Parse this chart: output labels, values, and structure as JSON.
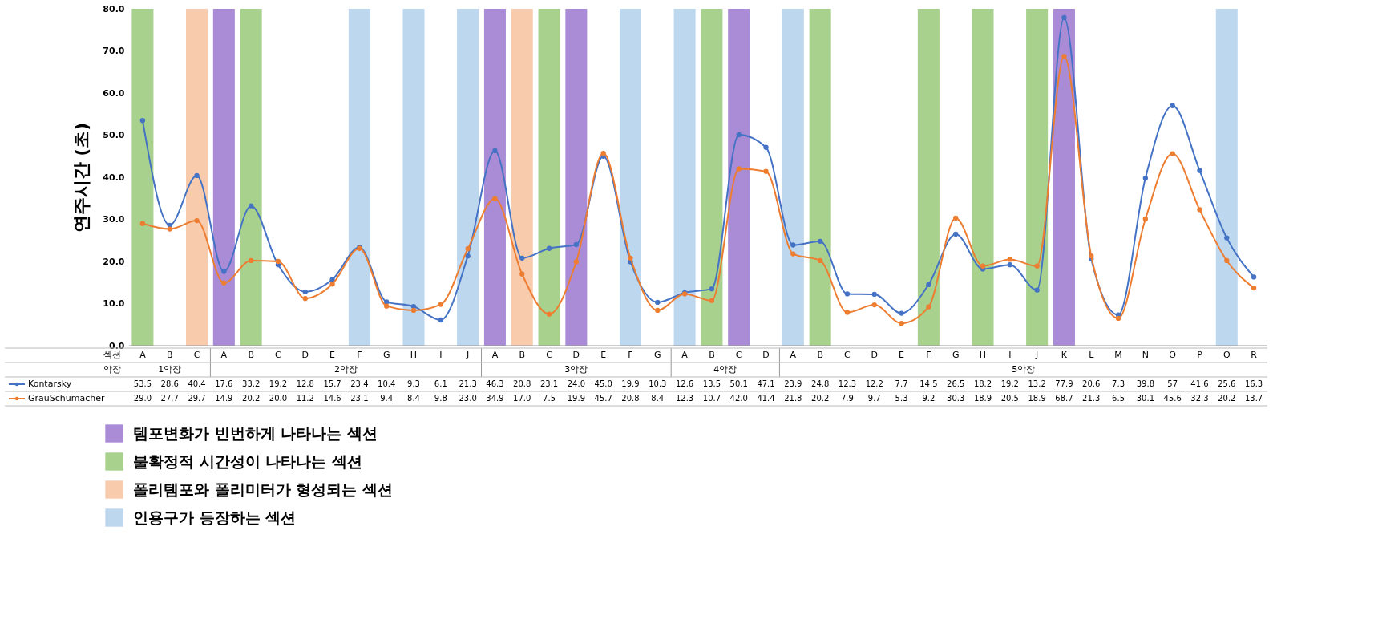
{
  "chart_data": {
    "type": "line",
    "ylabel": "연주시간 (초)",
    "xlabel": "섹션",
    "categories": [
      "A",
      "B",
      "C",
      "A",
      "B",
      "C",
      "D",
      "E",
      "F",
      "G",
      "H",
      "I",
      "J",
      "A",
      "B",
      "C",
      "D",
      "E",
      "F",
      "G",
      "A",
      "B",
      "C",
      "D",
      "A",
      "B",
      "C",
      "D",
      "E",
      "F",
      "G",
      "H",
      "I",
      "J",
      "K",
      "L",
      "M",
      "N",
      "O",
      "P",
      "Q",
      "R"
    ],
    "series": [
      {
        "name": "템포변화가 빈번하게 나타나는 섹션",
        "type": "bar",
        "color": "#a98bd6",
        "value_labels": [
          null,
          null,
          null,
          null,
          null,
          null,
          null,
          null,
          null,
          null,
          null,
          null,
          null,
          null,
          null,
          null,
          null,
          null,
          null,
          null,
          null,
          null,
          null,
          null,
          null,
          null,
          null,
          null,
          null,
          null,
          null,
          null,
          null,
          null,
          null,
          null,
          null,
          null,
          null,
          null,
          null,
          null
        ],
        "values": [
          null,
          null,
          null,
          80,
          null,
          null,
          null,
          null,
          null,
          null,
          null,
          null,
          null,
          80,
          null,
          null,
          80,
          null,
          null,
          null,
          null,
          null,
          80,
          null,
          null,
          null,
          null,
          null,
          null,
          null,
          null,
          null,
          null,
          null,
          80,
          null,
          null,
          null,
          null,
          null,
          null,
          null
        ]
      },
      {
        "name": "불확정적 시간성이 나타나는 섹션",
        "type": "bar",
        "color": "#a9d18e",
        "value_labels": [
          null,
          null,
          null,
          null,
          null,
          null,
          null,
          null,
          null,
          null,
          null,
          null,
          null,
          null,
          null,
          null,
          null,
          null,
          null,
          null,
          null,
          null,
          null,
          null,
          null,
          null,
          null,
          null,
          null,
          null,
          null,
          null,
          null,
          null,
          null,
          null,
          null,
          null,
          null,
          null,
          null,
          null
        ],
        "values": [
          80,
          null,
          null,
          null,
          80,
          null,
          null,
          null,
          null,
          null,
          null,
          null,
          null,
          null,
          null,
          80,
          null,
          null,
          null,
          null,
          null,
          80,
          null,
          null,
          null,
          80,
          null,
          null,
          null,
          80,
          null,
          80,
          null,
          80,
          null,
          null,
          null,
          null,
          null,
          null,
          null,
          null
        ]
      },
      {
        "name": "폴리템포와 폴리미터가 형성되는 섹션",
        "type": "bar",
        "color": "#f8cbad",
        "value_labels": [
          null,
          null,
          null,
          null,
          null,
          null,
          null,
          null,
          null,
          null,
          null,
          null,
          null,
          null,
          null,
          null,
          null,
          null,
          null,
          null,
          null,
          null,
          null,
          null,
          null,
          null,
          null,
          null,
          null,
          null,
          null,
          null,
          null,
          null,
          null,
          null,
          null,
          null,
          null,
          null,
          null,
          null
        ],
        "values": [
          null,
          null,
          80,
          null,
          null,
          null,
          null,
          null,
          null,
          null,
          null,
          null,
          null,
          null,
          80,
          null,
          null,
          null,
          null,
          null,
          null,
          null,
          null,
          null,
          null,
          null,
          null,
          null,
          null,
          null,
          null,
          null,
          null,
          null,
          null,
          null,
          null,
          null,
          null,
          null,
          null,
          null
        ]
      },
      {
        "name": "인용구가 등장하는 섹션",
        "type": "bar",
        "color": "#bdd7ee",
        "value_labels": [
          null,
          null,
          null,
          null,
          null,
          null,
          null,
          null,
          null,
          null,
          null,
          null,
          null,
          null,
          null,
          null,
          null,
          null,
          null,
          null,
          null,
          null,
          null,
          null,
          null,
          null,
          null,
          null,
          null,
          null,
          null,
          null,
          null,
          null,
          null,
          null,
          null,
          null,
          null,
          null,
          null,
          null
        ],
        "values": [
          null,
          null,
          null,
          null,
          null,
          null,
          null,
          null,
          80,
          null,
          80,
          null,
          80,
          null,
          null,
          null,
          null,
          null,
          80,
          null,
          80,
          null,
          null,
          null,
          80,
          null,
          null,
          null,
          null,
          null,
          null,
          null,
          null,
          null,
          null,
          null,
          null,
          null,
          null,
          null,
          80,
          null
        ]
      },
      {
        "name": "Kontarsky",
        "color": "#4472c4",
        "values": [
          53.5,
          28.6,
          40.4,
          17.6,
          33.2,
          19.2,
          12.8,
          15.7,
          23.4,
          10.4,
          9.3,
          6.1,
          21.3,
          46.3,
          20.8,
          23.1,
          24.0,
          45.0,
          19.9,
          10.3,
          12.6,
          13.5,
          50.1,
          47.1,
          23.9,
          24.8,
          12.3,
          12.2,
          7.7,
          14.5,
          26.5,
          18.2,
          19.2,
          13.2,
          77.9,
          20.6,
          7.3,
          39.8,
          57,
          41.6,
          25.6,
          16.3
        ],
        "value_labels": [
          "53.5",
          "28.6",
          "40.4",
          "17.6",
          "33.2",
          "19.2",
          "12.8",
          "15.7",
          "23.4",
          "10.4",
          "9.3",
          "6.1",
          "21.3",
          "46.3",
          "20.8",
          "23.1",
          "24.0",
          "45.0",
          "19.9",
          "10.3",
          "12.6",
          "13.5",
          "50.1",
          "47.1",
          "23.9",
          "24.8",
          "12.3",
          "12.2",
          "7.7",
          "14.5",
          "26.5",
          "18.2",
          "19.2",
          "13.2",
          "77.9",
          "20.6",
          "7.3",
          "39.8",
          "57",
          "41.6",
          "25.6",
          "16.3"
        ]
      },
      {
        "name": "GrauSchumacher",
        "color": "#ed7d31",
        "values": [
          29.0,
          27.7,
          29.7,
          14.9,
          20.2,
          20.0,
          11.2,
          14.6,
          23.1,
          9.4,
          8.4,
          9.8,
          23.0,
          34.9,
          17.0,
          7.5,
          19.9,
          45.7,
          20.8,
          8.4,
          12.3,
          10.7,
          42.0,
          41.4,
          21.8,
          20.2,
          7.9,
          9.7,
          5.3,
          9.2,
          30.3,
          18.9,
          20.5,
          18.9,
          68.7,
          21.3,
          6.5,
          30.1,
          45.6,
          32.3,
          20.2,
          13.7
        ],
        "value_labels": [
          "29.0",
          "27.7",
          "29.7",
          "14.9",
          "20.2",
          "20.0",
          "11.2",
          "14.6",
          "23.1",
          "9.4",
          "8.4",
          "9.8",
          "23.0",
          "34.9",
          "17.0",
          "7.5",
          "19.9",
          "45.7",
          "20.8",
          "8.4",
          "12.3",
          "10.7",
          "42.0",
          "41.4",
          "21.8",
          "20.2",
          "7.9",
          "9.7",
          "5.3",
          "9.2",
          "30.3",
          "18.9",
          "20.5",
          "18.9",
          "68.7",
          "21.3",
          "6.5",
          "30.1",
          "45.6",
          "32.3",
          "20.2",
          "13.7"
        ]
      }
    ],
    "annotations": [
      "악장",
      "1악장",
      "2악장",
      "3악장",
      "4악장",
      "5악장"
    ],
    "ylim": [
      0,
      80
    ],
    "yticks": [
      {
        "value": 0,
        "label": "0.0"
      },
      {
        "value": 10,
        "label": "10.0"
      },
      {
        "value": 20,
        "label": "20.0"
      },
      {
        "value": 30,
        "label": "30.0"
      },
      {
        "value": 40,
        "label": "40.0"
      },
      {
        "value": 50,
        "label": "50.0"
      },
      {
        "value": 60,
        "label": "60.0"
      },
      {
        "value": 70,
        "label": "70.0"
      },
      {
        "value": 80,
        "label": "80.0"
      }
    ],
    "data_labels": true,
    "legend": "bottom",
    "marker": "circle",
    "line_style": "solid"
  }
}
